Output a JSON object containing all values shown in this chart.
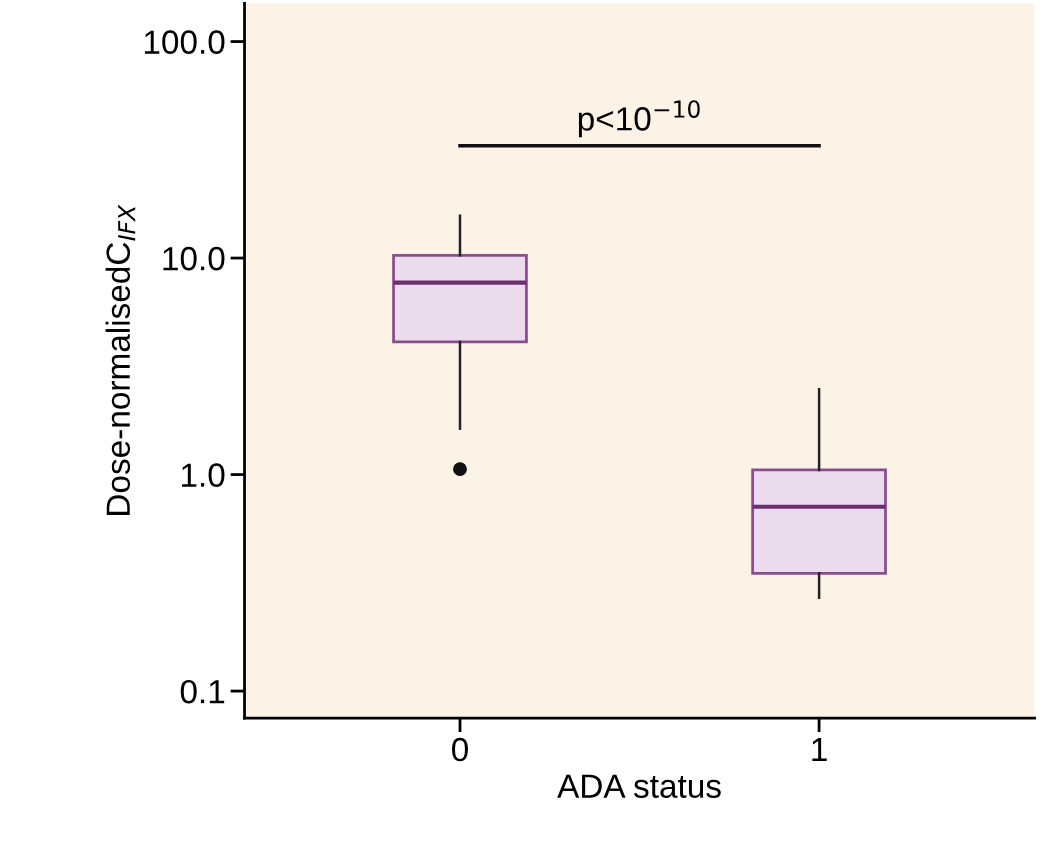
{
  "chart_data": {
    "type": "box",
    "xlabel": "ADA status",
    "ylabel": "Dose-normalisedC$_{IFX}$",
    "categories": [
      "0",
      "1"
    ],
    "boxes": [
      {
        "low": 1.63,
        "q1": 4.1,
        "median": 7.7,
        "q3": 10.3,
        "high": 15.7,
        "outliers": [
          1.06
        ]
      },
      {
        "low": 0.27,
        "q1": 0.35,
        "median": 0.71,
        "q3": 1.05,
        "high": 2.48
      }
    ],
    "color": "#ebdced",
    "log": "y",
    "ylim": [
      0.075,
      150
    ],
    "yticks": [
      {
        "value": 0.1,
        "label": "0.1"
      },
      {
        "value": 1,
        "label": "1.0"
      },
      {
        "value": 10,
        "label": "10.0"
      },
      {
        "value": 100,
        "label": "100.0"
      }
    ],
    "annotations": [
      "p<10$^{−10}$"
    ],
    "grid": false,
    "legend": false
  }
}
